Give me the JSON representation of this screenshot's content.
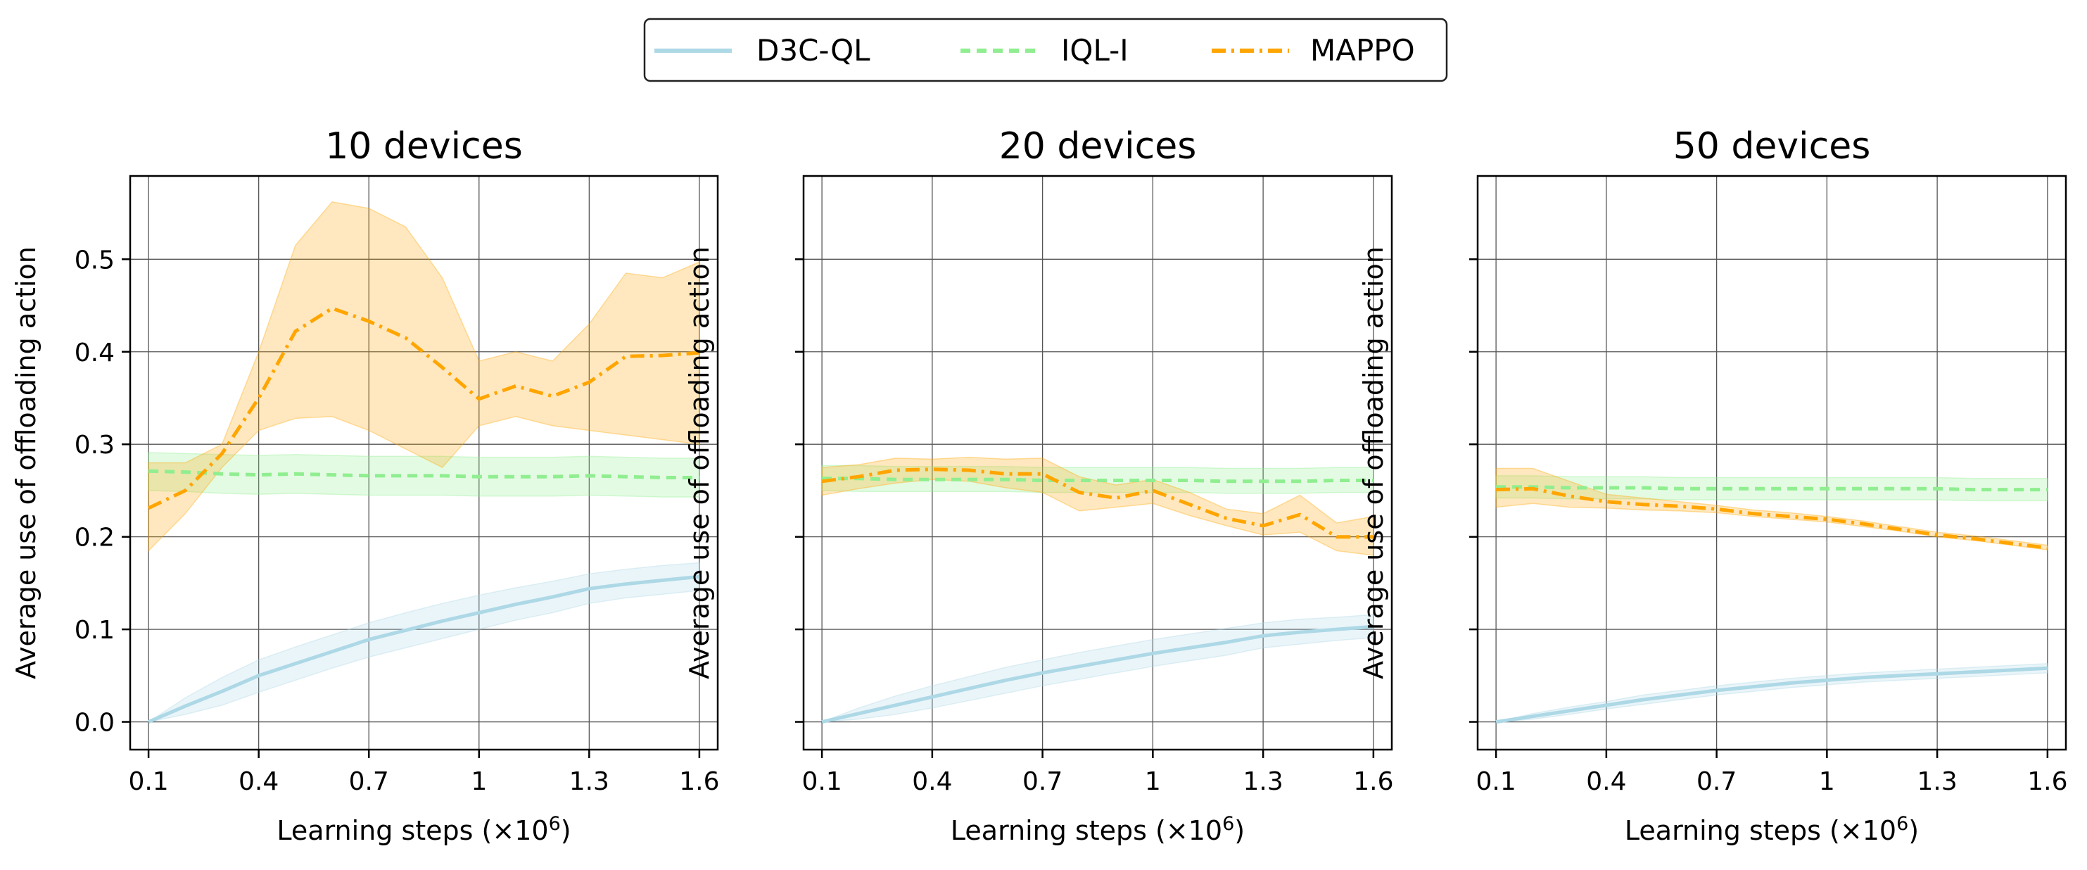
{
  "legend": {
    "placement": "top-center",
    "entries": [
      {
        "label": "D3C-QL",
        "style": "solid",
        "color": "#add8e6"
      },
      {
        "label": "IQL-I",
        "style": "dashed",
        "color": "#90ee90"
      },
      {
        "label": "MAPPO",
        "style": "dashdot",
        "color": "#ffa500"
      }
    ]
  },
  "colors": {
    "d3c": "#add8e6",
    "iql": "#90ee90",
    "mappo": "#ffa500",
    "grid": "#555555"
  },
  "chart_data": [
    {
      "type": "line",
      "title": "10 devices",
      "xlabel": "Learning steps (×10",
      "xlabel_sup": "6",
      "xlabel_close": ")",
      "ylabel": "Average use of offloading action",
      "xlim": [
        0.05,
        1.65
      ],
      "ylim": [
        -0.03,
        0.59
      ],
      "xticks": [
        0.1,
        0.4,
        0.7,
        1.0,
        1.3,
        1.6
      ],
      "xtick_labels": [
        "0.1",
        "0.4",
        "0.7",
        "1",
        "1.3",
        "1.6"
      ],
      "yticks": [
        0.0,
        0.1,
        0.2,
        0.3,
        0.4,
        0.5
      ],
      "ytick_labels": [
        "0.0",
        "0.1",
        "0.2",
        "0.3",
        "0.4",
        "0.5"
      ],
      "show_ytick_labels": true,
      "grid": true,
      "x": [
        0.1,
        0.2,
        0.3,
        0.4,
        0.5,
        0.6,
        0.7,
        0.8,
        0.9,
        1.0,
        1.1,
        1.2,
        1.3,
        1.4,
        1.5,
        1.6
      ],
      "series": [
        {
          "name": "D3C-QL",
          "key": "d3c",
          "style": "solid",
          "values": [
            0.0,
            0.017,
            0.033,
            0.05,
            0.063,
            0.076,
            0.089,
            0.099,
            0.109,
            0.118,
            0.127,
            0.135,
            0.144,
            0.149,
            0.153,
            0.157
          ],
          "lower": [
            0.0,
            0.008,
            0.018,
            0.032,
            0.045,
            0.058,
            0.07,
            0.08,
            0.09,
            0.1,
            0.11,
            0.118,
            0.128,
            0.134,
            0.138,
            0.142
          ],
          "upper": [
            0.0,
            0.026,
            0.048,
            0.067,
            0.081,
            0.094,
            0.107,
            0.118,
            0.128,
            0.137,
            0.145,
            0.152,
            0.16,
            0.165,
            0.169,
            0.172
          ]
        },
        {
          "name": "IQL-I",
          "key": "iql",
          "style": "dashed",
          "values": [
            0.271,
            0.27,
            0.268,
            0.267,
            0.268,
            0.267,
            0.266,
            0.266,
            0.266,
            0.265,
            0.265,
            0.265,
            0.266,
            0.265,
            0.264,
            0.264
          ],
          "lower": [
            0.25,
            0.249,
            0.247,
            0.246,
            0.247,
            0.246,
            0.245,
            0.245,
            0.245,
            0.244,
            0.244,
            0.244,
            0.245,
            0.244,
            0.243,
            0.243
          ],
          "upper": [
            0.291,
            0.29,
            0.289,
            0.288,
            0.289,
            0.288,
            0.287,
            0.287,
            0.287,
            0.286,
            0.286,
            0.286,
            0.287,
            0.286,
            0.285,
            0.285
          ]
        },
        {
          "name": "MAPPO",
          "key": "mappo",
          "style": "dashdot",
          "values": [
            0.231,
            0.25,
            0.29,
            0.35,
            0.422,
            0.447,
            0.433,
            0.415,
            0.383,
            0.349,
            0.363,
            0.352,
            0.367,
            0.395,
            0.396,
            0.399
          ],
          "lower": [
            0.185,
            0.225,
            0.275,
            0.315,
            0.328,
            0.33,
            0.315,
            0.295,
            0.275,
            0.32,
            0.33,
            0.32,
            0.315,
            0.31,
            0.305,
            0.3
          ],
          "upper": [
            0.28,
            0.28,
            0.3,
            0.4,
            0.515,
            0.562,
            0.555,
            0.535,
            0.48,
            0.39,
            0.4,
            0.39,
            0.43,
            0.485,
            0.48,
            0.497
          ]
        }
      ]
    },
    {
      "type": "line",
      "title": "20 devices",
      "xlabel": "Learning steps (×10",
      "xlabel_sup": "6",
      "xlabel_close": ")",
      "ylabel": "Average use of offloading action",
      "xlim": [
        0.05,
        1.65
      ],
      "ylim": [
        -0.03,
        0.59
      ],
      "xticks": [
        0.1,
        0.4,
        0.7,
        1.0,
        1.3,
        1.6
      ],
      "xtick_labels": [
        "0.1",
        "0.4",
        "0.7",
        "1",
        "1.3",
        "1.6"
      ],
      "yticks": [
        0.0,
        0.1,
        0.2,
        0.3,
        0.4,
        0.5
      ],
      "ytick_labels": [],
      "show_ytick_labels": false,
      "grid": true,
      "x": [
        0.1,
        0.2,
        0.3,
        0.4,
        0.5,
        0.6,
        0.7,
        0.8,
        0.9,
        1.0,
        1.1,
        1.2,
        1.3,
        1.4,
        1.5,
        1.6
      ],
      "series": [
        {
          "name": "D3C-QL",
          "key": "d3c",
          "style": "solid",
          "values": [
            0.0,
            0.009,
            0.018,
            0.027,
            0.036,
            0.045,
            0.053,
            0.06,
            0.067,
            0.074,
            0.08,
            0.086,
            0.093,
            0.097,
            0.1,
            0.103
          ],
          "lower": [
            0.0,
            0.003,
            0.008,
            0.015,
            0.023,
            0.031,
            0.039,
            0.046,
            0.053,
            0.06,
            0.066,
            0.072,
            0.08,
            0.084,
            0.088,
            0.091
          ],
          "upper": [
            0.0,
            0.015,
            0.028,
            0.039,
            0.049,
            0.059,
            0.067,
            0.075,
            0.082,
            0.089,
            0.095,
            0.101,
            0.107,
            0.111,
            0.113,
            0.116
          ]
        },
        {
          "name": "IQL-I",
          "key": "iql",
          "style": "dashed",
          "values": [
            0.263,
            0.263,
            0.262,
            0.262,
            0.262,
            0.262,
            0.261,
            0.261,
            0.261,
            0.261,
            0.261,
            0.26,
            0.26,
            0.26,
            0.261,
            0.261
          ],
          "lower": [
            0.25,
            0.249,
            0.249,
            0.249,
            0.249,
            0.249,
            0.248,
            0.248,
            0.248,
            0.248,
            0.248,
            0.247,
            0.247,
            0.247,
            0.248,
            0.248
          ],
          "upper": [
            0.277,
            0.277,
            0.276,
            0.276,
            0.276,
            0.276,
            0.275,
            0.275,
            0.275,
            0.275,
            0.275,
            0.274,
            0.274,
            0.274,
            0.275,
            0.275
          ]
        },
        {
          "name": "MAPPO",
          "key": "mappo",
          "style": "dashdot",
          "values": [
            0.26,
            0.265,
            0.272,
            0.273,
            0.272,
            0.268,
            0.268,
            0.248,
            0.242,
            0.25,
            0.235,
            0.22,
            0.212,
            0.224,
            0.2,
            0.2
          ],
          "lower": [
            0.245,
            0.252,
            0.258,
            0.262,
            0.26,
            0.253,
            0.248,
            0.228,
            0.232,
            0.236,
            0.223,
            0.212,
            0.202,
            0.205,
            0.185,
            0.18
          ],
          "upper": [
            0.275,
            0.278,
            0.285,
            0.284,
            0.286,
            0.284,
            0.285,
            0.265,
            0.256,
            0.262,
            0.248,
            0.23,
            0.225,
            0.245,
            0.215,
            0.222
          ]
        }
      ]
    },
    {
      "type": "line",
      "title": "50 devices",
      "xlabel": "Learning steps (×10",
      "xlabel_sup": "6",
      "xlabel_close": ")",
      "ylabel": "Average use of offloading action",
      "xlim": [
        0.05,
        1.65
      ],
      "ylim": [
        -0.03,
        0.59
      ],
      "xticks": [
        0.1,
        0.4,
        0.7,
        1.0,
        1.3,
        1.6
      ],
      "xtick_labels": [
        "0.1",
        "0.4",
        "0.7",
        "1",
        "1.3",
        "1.6"
      ],
      "yticks": [
        0.0,
        0.1,
        0.2,
        0.3,
        0.4,
        0.5
      ],
      "ytick_labels": [],
      "show_ytick_labels": false,
      "grid": true,
      "x": [
        0.1,
        0.2,
        0.3,
        0.4,
        0.5,
        0.6,
        0.7,
        0.8,
        0.9,
        1.0,
        1.1,
        1.2,
        1.3,
        1.4,
        1.5,
        1.6
      ],
      "series": [
        {
          "name": "D3C-QL",
          "key": "d3c",
          "style": "solid",
          "values": [
            0.0,
            0.006,
            0.012,
            0.018,
            0.024,
            0.029,
            0.034,
            0.038,
            0.042,
            0.045,
            0.048,
            0.05,
            0.052,
            0.054,
            0.056,
            0.058
          ],
          "lower": [
            0.0,
            0.003,
            0.008,
            0.014,
            0.019,
            0.024,
            0.029,
            0.033,
            0.037,
            0.04,
            0.043,
            0.045,
            0.047,
            0.049,
            0.051,
            0.053
          ],
          "upper": [
            0.0,
            0.009,
            0.016,
            0.022,
            0.029,
            0.034,
            0.039,
            0.043,
            0.047,
            0.05,
            0.053,
            0.055,
            0.057,
            0.059,
            0.061,
            0.063
          ]
        },
        {
          "name": "IQL-I",
          "key": "iql",
          "style": "dashed",
          "values": [
            0.254,
            0.254,
            0.253,
            0.253,
            0.253,
            0.252,
            0.252,
            0.252,
            0.252,
            0.252,
            0.252,
            0.252,
            0.252,
            0.251,
            0.251,
            0.251
          ],
          "lower": [
            0.242,
            0.242,
            0.241,
            0.241,
            0.241,
            0.24,
            0.24,
            0.24,
            0.24,
            0.24,
            0.24,
            0.24,
            0.24,
            0.239,
            0.239,
            0.239
          ],
          "upper": [
            0.266,
            0.266,
            0.265,
            0.265,
            0.265,
            0.264,
            0.264,
            0.264,
            0.264,
            0.264,
            0.264,
            0.264,
            0.264,
            0.263,
            0.263,
            0.263
          ]
        },
        {
          "name": "MAPPO",
          "key": "mappo",
          "style": "dashdot",
          "values": [
            0.251,
            0.252,
            0.244,
            0.238,
            0.235,
            0.233,
            0.23,
            0.225,
            0.222,
            0.219,
            0.214,
            0.208,
            0.202,
            0.198,
            0.193,
            0.188
          ],
          "lower": [
            0.232,
            0.236,
            0.232,
            0.231,
            0.229,
            0.228,
            0.226,
            0.222,
            0.219,
            0.216,
            0.211,
            0.206,
            0.2,
            0.196,
            0.191,
            0.186
          ],
          "upper": [
            0.274,
            0.274,
            0.26,
            0.246,
            0.242,
            0.238,
            0.234,
            0.229,
            0.226,
            0.222,
            0.217,
            0.211,
            0.205,
            0.201,
            0.196,
            0.191
          ]
        }
      ]
    }
  ]
}
